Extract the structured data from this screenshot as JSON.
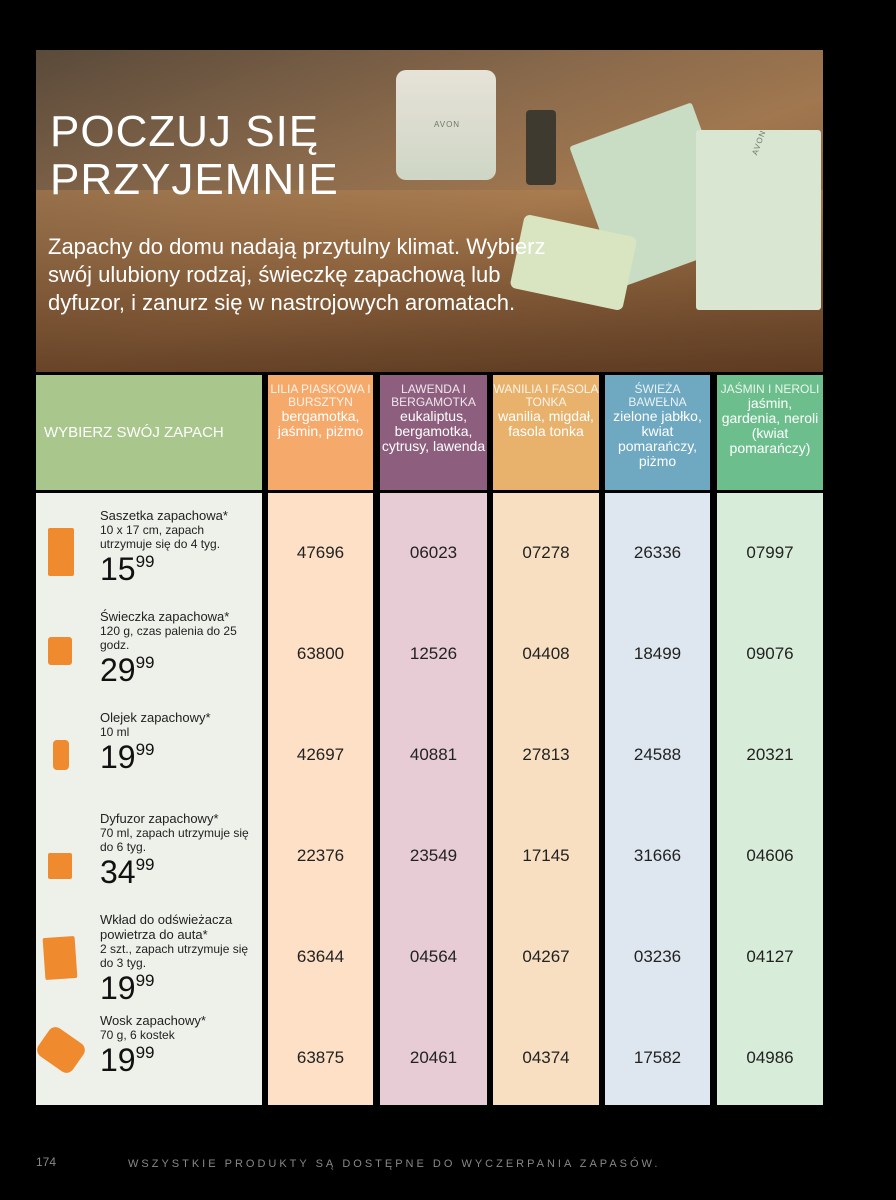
{
  "hero": {
    "title_line1": "POCZUJ SIĘ",
    "title_line2": "PRZYJEMNIE",
    "subtitle": "Zapachy do domu nadają przytulny klimat. Wybierz swój ulubiony rodzaj, świeczkę zapachową lub dyfuzor, i zanurz się w nastrojowych aromatach.",
    "brand": "AVON"
  },
  "table": {
    "left_header": "WYBIERZ SWÓJ ZAPACH",
    "scents": [
      {
        "name": "LILIA PIASKOWA I BURSZTYN",
        "notes": "bergamotka, jaśmin, piżmo",
        "color": "#f5aa6c",
        "tint": "#fde0c6"
      },
      {
        "name": "LAWENDA I BERGAMOTKA",
        "notes": "eukaliptus, bergamotka, cytrusy, lawenda",
        "color": "#8d5e7d",
        "tint": "#e7ccd6"
      },
      {
        "name": "WANILIA I FASOLA TONKA",
        "notes": "wanilia, migdał, fasola tonka",
        "color": "#e8b26c",
        "tint": "#f8dfc1"
      },
      {
        "name": "ŚWIEŻA BAWEŁNA",
        "notes": "zielone jabłko, kwiat pomarańczy, piżmo",
        "color": "#6ea8c1",
        "tint": "#dee7ef"
      },
      {
        "name": "JAŚMIN I NEROLI",
        "notes": "jaśmin, gardenia, neroli (kwiat pomarańczy)",
        "color": "#6cbf8c",
        "tint": "#d7ecd9"
      }
    ],
    "products": [
      {
        "name": "Saszetka zapachowa*",
        "desc": "10 x 17 cm, zapach utrzymuje się do 4 tyg.",
        "price_main": "15",
        "price_cents": "99",
        "icon": "sachet-icon",
        "codes": [
          "47696",
          "06023",
          "07278",
          "26336",
          "07997"
        ]
      },
      {
        "name": "Świeczka zapachowa*",
        "desc": "120 g, czas palenia do 25 godz.",
        "price_main": "29",
        "price_cents": "99",
        "icon": "candle-icon",
        "codes": [
          "63800",
          "12526",
          "04408",
          "18499",
          "09076"
        ]
      },
      {
        "name": "Olejek zapachowy*",
        "desc": "10 ml",
        "price_main": "19",
        "price_cents": "99",
        "icon": "oil-bottle-icon",
        "codes": [
          "42697",
          "40881",
          "27813",
          "24588",
          "20321"
        ]
      },
      {
        "name": "Dyfuzor zapachowy*",
        "desc": "70 ml, zapach utrzymuje się do 6 tyg.",
        "price_main": "34",
        "price_cents": "99",
        "icon": "diffuser-icon",
        "codes": [
          "22376",
          "23549",
          "17145",
          "31666",
          "04606"
        ]
      },
      {
        "name": "Wkład do odświeżacza powietrza do auta*",
        "desc": "2 szt., zapach utrzymuje się do 3 tyg.",
        "price_main": "19",
        "price_cents": "99",
        "icon": "car-refill-icon",
        "codes": [
          "63644",
          "04564",
          "04267",
          "03236",
          "04127"
        ]
      },
      {
        "name": "Wosk zapachowy*",
        "desc": "70 g, 6 kostek",
        "price_main": "19",
        "price_cents": "99",
        "icon": "wax-melt-icon",
        "codes": [
          "63875",
          "20461",
          "04374",
          "17582",
          "04986"
        ]
      }
    ]
  },
  "footer": {
    "page": "174",
    "note": "WSZYSTKIE PRODUKTY SĄ DOSTĘPNE DO WYCZERPANIA ZAPASÓW."
  },
  "colors": {
    "icon": "#f08a2e",
    "left_header": "#a9c68d",
    "left_body": "#eef1ea"
  }
}
